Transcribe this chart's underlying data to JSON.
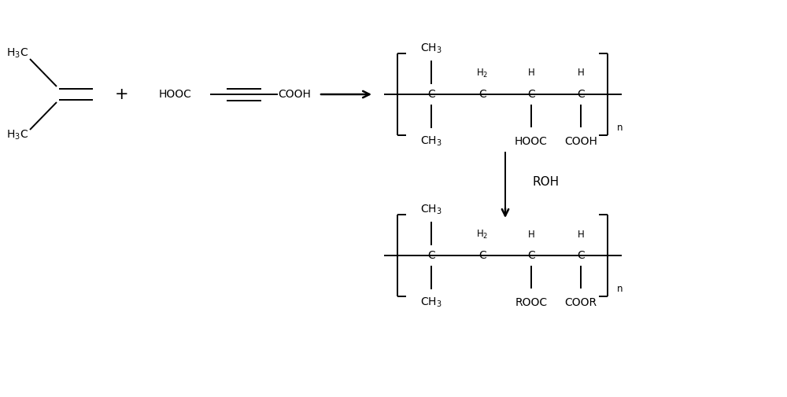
{
  "bg_color": "#ffffff",
  "line_color": "#000000",
  "text_color": "#000000",
  "figsize": [
    10.0,
    5.05
  ],
  "dpi": 100,
  "xlim": [
    0,
    10
  ],
  "ylim": [
    0,
    5.05
  ]
}
